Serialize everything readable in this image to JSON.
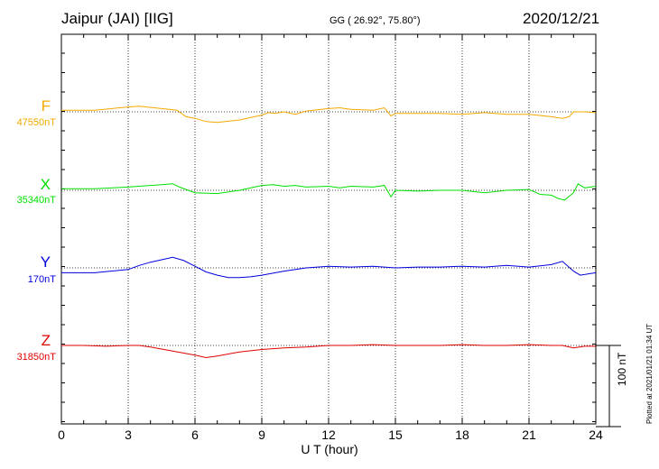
{
  "header": {
    "station": "Jaipur (JAI)  [IIG]",
    "coords": "GG ( 26.92°,  75.80°)",
    "date": "2020/12/21"
  },
  "footer": {
    "xlabel": "U T (hour)",
    "plotted_note": "Plotted at 2021/01/21 01:34 UT",
    "scale_label": "100 nT"
  },
  "colors": {
    "F": "#f5a800",
    "X": "#00e000",
    "Y": "#0000dd",
    "Z": "#e00000"
  },
  "chart_data": {
    "type": "line",
    "title": "Jaipur (JAI)  [IIG]",
    "xlabel": "U T (hour)",
    "ylabel": "",
    "xlim": [
      0,
      24
    ],
    "x_ticks": [
      "0",
      "3",
      "6",
      "9",
      "12",
      "15",
      "18",
      "21",
      "24"
    ],
    "scale_bar_nT": 100,
    "series": [
      {
        "name": "F",
        "baseline_label": "47550nT",
        "x": [
          0,
          1.5,
          3,
          3.5,
          4.5,
          5.2,
          5.6,
          6,
          6.5,
          7,
          8,
          9,
          9.3,
          9.6,
          10,
          10.5,
          11,
          12,
          12.5,
          13,
          14,
          14.5,
          14.8,
          15,
          16,
          17,
          18,
          19,
          20,
          21,
          22,
          22.5,
          22.8,
          23,
          23.5,
          24
        ],
        "y": [
          2,
          2,
          6,
          7,
          4,
          2,
          -6,
          -8,
          -12,
          -13,
          -10,
          -4,
          -1,
          -2,
          0,
          -3,
          1,
          4,
          5,
          3,
          2,
          5,
          -5,
          -2,
          -2,
          -2,
          -3,
          -1,
          -3,
          -3,
          -6,
          -8,
          -6,
          0,
          0,
          -1
        ]
      },
      {
        "name": "X",
        "baseline_label": "35340nT",
        "x": [
          0,
          1.5,
          3,
          3.5,
          4.5,
          5,
          5.3,
          6,
          7,
          8,
          9,
          9.5,
          10,
          10.5,
          11,
          12,
          12.5,
          13,
          14,
          14.5,
          14.8,
          15,
          16,
          17,
          18,
          19,
          20,
          21,
          21.5,
          22,
          22.3,
          22.6,
          23,
          23.2,
          23.5,
          24
        ],
        "y": [
          2,
          2,
          4,
          5,
          7,
          8,
          4,
          -3,
          -4,
          0,
          6,
          7,
          5,
          6,
          4,
          5,
          3,
          5,
          4,
          6,
          -8,
          0,
          -1,
          0,
          0,
          -3,
          0,
          1,
          -5,
          -6,
          -10,
          -12,
          -3,
          8,
          3,
          5
        ]
      },
      {
        "name": "Y",
        "baseline_label": "170nT",
        "x": [
          0,
          1.5,
          3,
          3.5,
          4,
          4.5,
          5,
          5.5,
          6,
          6.5,
          7,
          7.5,
          8,
          8.5,
          9,
          10,
          11,
          12,
          13,
          14,
          15,
          16,
          17,
          18,
          19,
          20,
          21,
          22,
          22.5,
          23,
          23.3,
          24
        ],
        "y": [
          -6,
          -6,
          -2,
          3,
          7,
          10,
          13,
          9,
          2,
          -5,
          -9,
          -12,
          -12,
          -11,
          -9,
          -4,
          0,
          2,
          1,
          2,
          0,
          1,
          1,
          2,
          1,
          3,
          1,
          4,
          8,
          -4,
          -9,
          -6
        ]
      },
      {
        "name": "Z",
        "baseline_label": "31850nT",
        "x": [
          0,
          1,
          2,
          3,
          3.5,
          4,
          5,
          6,
          6.5,
          7,
          8,
          9,
          10,
          11,
          12,
          13,
          14,
          15,
          16,
          17,
          18,
          19,
          20,
          21,
          22,
          22.5,
          23,
          23.5,
          24
        ],
        "y": [
          0,
          0,
          -1,
          0,
          0,
          -2,
          -7,
          -12,
          -15,
          -13,
          -8,
          -5,
          -3,
          -2,
          0,
          0,
          1,
          0,
          0,
          0,
          1,
          0,
          0,
          1,
          0,
          0,
          -3,
          -1,
          -1
        ]
      }
    ]
  }
}
